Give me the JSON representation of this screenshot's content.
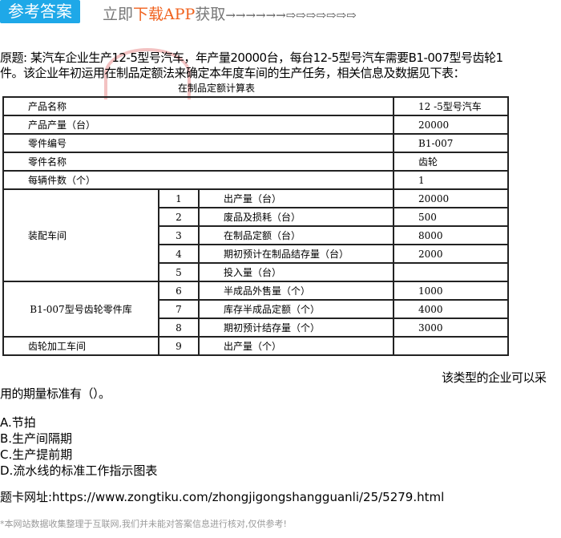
{
  "header": {
    "answer_button": "参考答案",
    "download_prefix": "立即",
    "download_highlight": "下载APP",
    "download_suffix": "获取",
    "arrows": "→→→→→→⇨⇨⇨⇨⇨⇨⇨"
  },
  "question": {
    "line1": "原题: 某汽车企业生产12-5型号汽车，年产量20000台，每台12-5型号汽车需要B1-007型号齿轮1",
    "line2": "件。该企业年初运用在制品定额法来确定本年度车间的生产任务，相关信息及数据见下表：",
    "table_caption": "在制品定额计算表",
    "after_table": "该类型的企业可以采",
    "line3": "用的期量标准有（）。"
  },
  "table": {
    "top_rows": [
      [
        "产品名称",
        "12 -5型号汽车"
      ],
      [
        "产品产量（台）",
        "20000"
      ],
      [
        "零件编号",
        "B1-007"
      ],
      [
        "零件名称",
        "齿轮"
      ],
      [
        "每辆件数（个）",
        "1"
      ]
    ],
    "groups": [
      {
        "name": "装配车间",
        "rows": [
          [
            "1",
            "出产量（台）",
            "20000"
          ],
          [
            "2",
            "废品及损耗（台）",
            "500"
          ],
          [
            "3",
            "在制品定额（台）",
            "8000"
          ],
          [
            "4",
            "期初预计在制品结存量（台）",
            "2000"
          ],
          [
            "5",
            "投入量（台）",
            ""
          ]
        ]
      },
      {
        "name": "B1-007型号齿轮零件库",
        "rows": [
          [
            "6",
            "半成品外售量（个）",
            "1000"
          ],
          [
            "7",
            "库存半成品定额（个）",
            "4000"
          ],
          [
            "8",
            "期初预计结存量（个）",
            "3000"
          ]
        ]
      },
      {
        "name": "齿轮加工车间",
        "rows": [
          [
            "9",
            "出产量（个）",
            ""
          ]
        ]
      }
    ]
  },
  "options": [
    "A.节拍",
    "B.生产间隔期",
    "C.生产提前期",
    "D.流水线的标准工作指示图表"
  ],
  "source_url": "题卡网址:https://www.zongtiku.com/zhongjigongshangguanli/25/5279.html",
  "footer": "*本网站数据收集整理于互联网,我们并未能对答案信息进行核对,仅供参考!"
}
